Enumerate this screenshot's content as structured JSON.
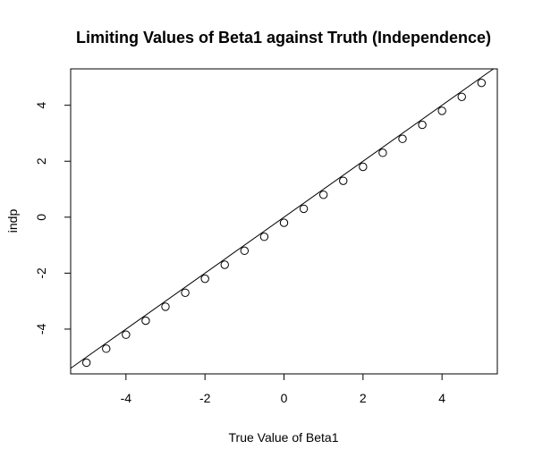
{
  "chart_data": {
    "type": "scatter",
    "title": "Limiting Values of Beta1 against Truth (Independence)",
    "xlabel": "True Value of Beta1",
    "ylabel": "indp",
    "xlim": [
      -5.4,
      5.4
    ],
    "ylim": [
      -5.6,
      5.3
    ],
    "x_ticks": [
      -4,
      -2,
      0,
      2,
      4
    ],
    "y_ticks": [
      -4,
      -2,
      0,
      2,
      4
    ],
    "x_tick_labels": [
      "-4",
      "-2",
      "0",
      "2",
      "4"
    ],
    "y_tick_labels": [
      "-4",
      "-2",
      "0",
      "2",
      "4"
    ],
    "grid": false,
    "legend": "none",
    "marker": "open-circle",
    "series": [
      {
        "x": [
          -5,
          -4.5,
          -4,
          -3.5,
          -3,
          -2.5,
          -2,
          -1.5,
          -1,
          -0.5,
          0,
          0.5,
          1,
          1.5,
          2,
          2.5,
          3,
          3.5,
          4,
          4.5,
          5
        ],
        "y": [
          -5.2,
          -4.7,
          -4.2,
          -3.7,
          -3.2,
          -2.7,
          -2.2,
          -1.7,
          -1.2,
          -0.7,
          -0.2,
          0.3,
          0.8,
          1.3,
          1.8,
          2.3,
          2.8,
          3.3,
          3.8,
          4.3,
          4.8
        ]
      }
    ],
    "reference_line": {
      "intercept": 0,
      "slope": 1
    },
    "colors": {
      "points": "#000000",
      "line": "#000000",
      "axes": "#000000"
    }
  }
}
